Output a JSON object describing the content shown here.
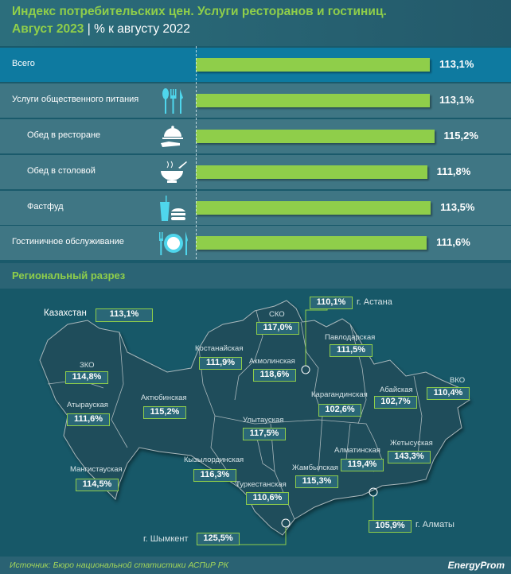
{
  "header": {
    "title": "Индекс потребительских цен. Услуги ресторанов и гостиниц.",
    "period": "Август 2023",
    "unit": "% к августу 2022",
    "separator": "|"
  },
  "chart_data": {
    "type": "bar",
    "title": "Индекс потребительских цен. Услуги ресторанов и гостиниц. Август 2023 | % к августу 2022",
    "categories": [
      "Всего",
      "Услуги общественного питания",
      "Обед в ресторане",
      "Обед в столовой",
      "Фастфуд",
      "Гостиничное обслуживание"
    ],
    "values": [
      113.1,
      113.1,
      115.2,
      111.8,
      113.5,
      111.6
    ],
    "labels": [
      "113,1%",
      "113,1%",
      "115,2%",
      "111,8%",
      "113,5%",
      "111,6%"
    ],
    "icons": [
      "",
      "cutlery-icon",
      "cloche-icon",
      "bowl-icon",
      "fastfood-icon",
      "plate-icon"
    ],
    "bar_color": "#8fce4a"
  },
  "regional": {
    "title": "Региональный разрез",
    "country": {
      "name": "Казахстан",
      "value": "113,1%"
    },
    "regions": [
      {
        "name": "г. Астана",
        "value": "110,1%"
      },
      {
        "name": "СКО",
        "value": "117,0%"
      },
      {
        "name": "Павлодарская",
        "value": "111,5%"
      },
      {
        "name": "Костанайская",
        "value": "111,9%"
      },
      {
        "name": "Акмолинская",
        "value": "118,6%"
      },
      {
        "name": "ЗКО",
        "value": "114,8%"
      },
      {
        "name": "ВКО",
        "value": "110,4%"
      },
      {
        "name": "Абайская",
        "value": "102,7%"
      },
      {
        "name": "Карагандинская",
        "value": "102,6%"
      },
      {
        "name": "Актюбинская",
        "value": "115,2%"
      },
      {
        "name": "Атырауская",
        "value": "111,6%"
      },
      {
        "name": "Улытауская",
        "value": "117,5%"
      },
      {
        "name": "Жетысуская",
        "value": "143,3%"
      },
      {
        "name": "Алматинская",
        "value": "119,4%"
      },
      {
        "name": "Кызылординская",
        "value": "116,3%"
      },
      {
        "name": "Мангистауская",
        "value": "114,5%"
      },
      {
        "name": "Жамбылская",
        "value": "115,3%"
      },
      {
        "name": "Туркестанская",
        "value": "110,6%"
      },
      {
        "name": "г. Алматы",
        "value": "105,9%"
      },
      {
        "name": "г. Шымкент",
        "value": "125,5%"
      }
    ]
  },
  "footer": {
    "source": "Источник: Бюро национальной статистики АСПиР РК",
    "logo": "EnergyProm"
  }
}
